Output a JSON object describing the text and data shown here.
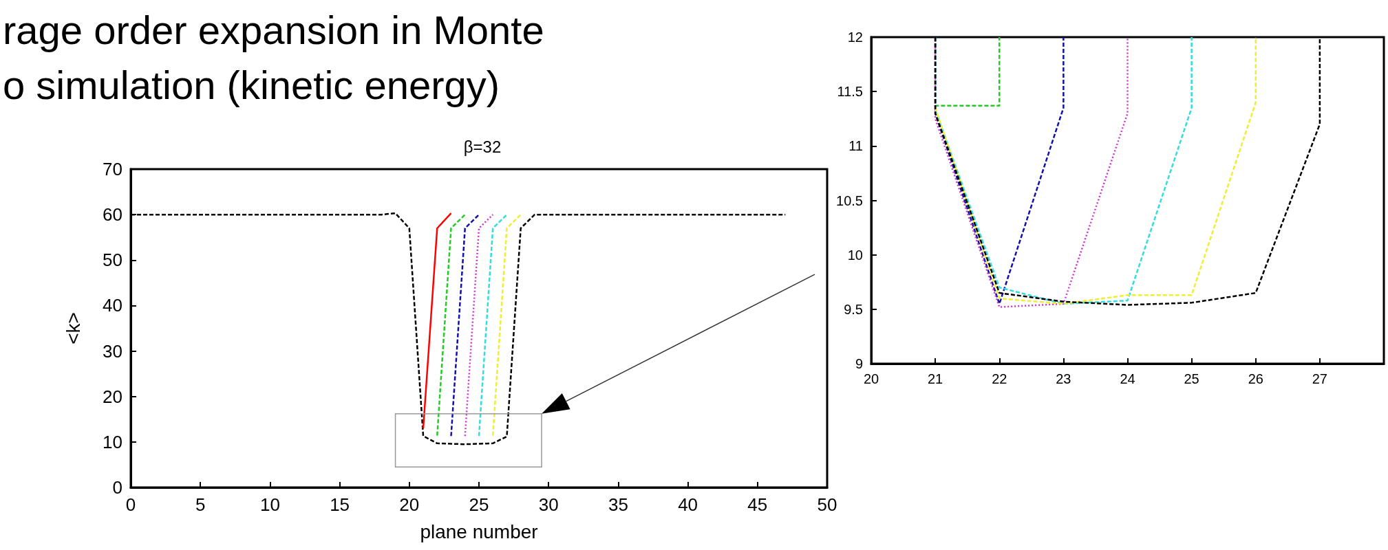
{
  "chart_data": [
    {
      "type": "line",
      "title": "β=32",
      "xlabel": "plane number",
      "ylabel": "<k>",
      "annotations": [
        "rage order expansion in Monte",
        "o simulation (kinetic energy)"
      ],
      "xlim": [
        0,
        50
      ],
      "ylim": [
        0,
        70
      ],
      "xticks": [
        0,
        5,
        10,
        15,
        20,
        25,
        30,
        35,
        40,
        45,
        50
      ],
      "yticks": [
        0,
        10,
        20,
        30,
        40,
        50,
        60,
        70
      ],
      "grid": false,
      "marker": "none",
      "series": [
        {
          "color": "#22cc22",
          "line_style": "dashed",
          "x": [
            22,
            23,
            24
          ],
          "values": [
            11.4,
            57,
            60
          ]
        },
        {
          "color": "#1111aa",
          "line_style": "dashed",
          "x": [
            23,
            24,
            25
          ],
          "values": [
            11.3,
            57,
            60
          ]
        },
        {
          "color": "#cc33cc",
          "line_style": "dotted",
          "x": [
            24,
            25,
            26
          ],
          "values": [
            11.3,
            57,
            60
          ]
        },
        {
          "color": "#33dddd",
          "line_style": "dashed",
          "x": [
            25,
            26,
            27
          ],
          "values": [
            11.3,
            57,
            60
          ]
        },
        {
          "color": "#eeee33",
          "line_style": "dashed",
          "x": [
            26,
            27,
            28
          ],
          "values": [
            11.4,
            57,
            60
          ]
        },
        {
          "color": "#000000",
          "line_style": "dashed",
          "x": [
            0,
            18,
            19,
            20,
            21,
            22,
            23,
            24,
            25,
            26,
            27,
            28,
            29,
            47
          ],
          "values": [
            60,
            60,
            60.3,
            57,
            11.3,
            9.7,
            9.6,
            9.5,
            9.6,
            9.7,
            11.2,
            57,
            60,
            60
          ]
        },
        {
          "color": "#ff0000",
          "line_style": "solid",
          "x": [
            21,
            22,
            23
          ],
          "values": [
            13,
            57,
            60.3
          ]
        }
      ]
    },
    {
      "type": "line",
      "xlim": [
        20,
        28
      ],
      "ylim": [
        9,
        12
      ],
      "xticks": [
        20,
        21,
        22,
        23,
        24,
        25,
        26,
        27
      ],
      "yticks": [
        9,
        9.5,
        10,
        10.5,
        11,
        11.5,
        12
      ],
      "grid": false,
      "marker": "none",
      "series": [
        {
          "color": "#22cc22",
          "line_style": "dashed",
          "x": [
            21,
            21,
            22,
            22
          ],
          "values": [
            12,
            11.37,
            11.37,
            12
          ]
        },
        {
          "color": "#1111aa",
          "line_style": "dashed",
          "x": [
            21,
            21,
            22,
            23,
            23
          ],
          "values": [
            12,
            11.3,
            9.55,
            11.35,
            12
          ]
        },
        {
          "color": "#cc33cc",
          "line_style": "dotted",
          "x": [
            21,
            21,
            22,
            23,
            24,
            24
          ],
          "values": [
            12,
            11.25,
            9.52,
            9.55,
            11.3,
            12
          ]
        },
        {
          "color": "#33dddd",
          "line_style": "dashed",
          "x": [
            21,
            21,
            22,
            23,
            24,
            25,
            25
          ],
          "values": [
            12,
            11.33,
            9.7,
            9.55,
            9.58,
            11.35,
            12
          ]
        },
        {
          "color": "#eeee33",
          "line_style": "dashed",
          "x": [
            21,
            22,
            23,
            24,
            25,
            26,
            26
          ],
          "values": [
            11.35,
            9.6,
            9.55,
            9.63,
            9.63,
            11.4,
            12
          ]
        },
        {
          "color": "#000000",
          "line_style": "dashed",
          "x": [
            21,
            21,
            22,
            23,
            24,
            25,
            26,
            27,
            27
          ],
          "values": [
            12,
            11.3,
            9.65,
            9.57,
            9.54,
            9.56,
            9.65,
            11.2,
            12
          ]
        }
      ]
    }
  ]
}
